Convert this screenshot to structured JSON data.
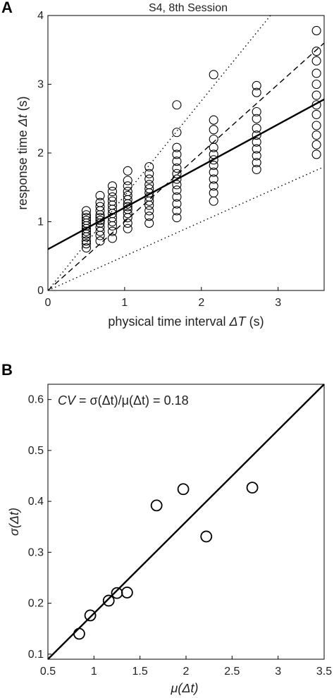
{
  "chart_data": [
    {
      "type": "scatter",
      "panel_label": "A",
      "title": "S4, 8th Session",
      "xlabel_pre": "physical time interval ",
      "xlabel_var": "ΔT",
      "xlabel_post": " (s)",
      "ylabel_pre": "response time ",
      "ylabel_var": "Δt",
      "ylabel_post": " (s)",
      "xlim": [
        0,
        3.6
      ],
      "ylim": [
        0,
        4
      ],
      "xticks": [
        "0",
        "1",
        "2",
        "3"
      ],
      "yticks": [
        "0",
        "1",
        "2",
        "3",
        "4"
      ],
      "grid": false,
      "series": [
        {
          "kind": "points",
          "marker": "open-circle",
          "groups": [
            {
              "x": 0.5,
              "y": [
                0.62,
                0.68,
                0.72,
                0.78,
                0.82,
                0.86,
                0.9,
                0.94,
                0.98,
                1.02,
                1.06,
                1.1,
                1.16
              ]
            },
            {
              "x": 0.68,
              "y": [
                0.72,
                0.8,
                0.86,
                0.92,
                0.98,
                1.02,
                1.06,
                1.1,
                1.16,
                1.22,
                1.28,
                1.38
              ]
            },
            {
              "x": 0.84,
              "y": [
                0.76,
                0.86,
                0.94,
                1.0,
                1.06,
                1.12,
                1.18,
                1.24,
                1.3,
                1.36,
                1.44,
                1.52
              ]
            },
            {
              "x": 1.04,
              "y": [
                0.9,
                0.98,
                1.06,
                1.12,
                1.18,
                1.22,
                1.26,
                1.32,
                1.38,
                1.44,
                1.52,
                1.6,
                1.74
              ]
            },
            {
              "x": 1.32,
              "y": [
                0.98,
                1.08,
                1.16,
                1.24,
                1.3,
                1.36,
                1.42,
                1.48,
                1.54,
                1.62,
                1.7,
                1.8
              ]
            },
            {
              "x": 1.68,
              "y": [
                1.06,
                1.16,
                1.26,
                1.36,
                1.46,
                1.54,
                1.62,
                1.7,
                1.78,
                1.88,
                1.98,
                2.08,
                2.3,
                2.7
              ]
            },
            {
              "x": 2.16,
              "y": [
                1.3,
                1.42,
                1.52,
                1.62,
                1.72,
                1.82,
                1.9,
                1.98,
                2.08,
                2.2,
                2.34,
                2.48,
                3.14
              ]
            },
            {
              "x": 2.72,
              "y": [
                1.76,
                1.86,
                1.96,
                2.06,
                2.16,
                2.26,
                2.36,
                2.5,
                2.6,
                2.88,
                2.98
              ]
            },
            {
              "x": 3.5,
              "y": [
                1.98,
                2.12,
                2.26,
                2.4,
                2.56,
                2.7,
                2.84,
                3.0,
                3.16,
                3.34,
                3.48,
                3.78
              ]
            }
          ]
        },
        {
          "kind": "line",
          "style": "solid",
          "points": [
            [
              0,
              0.6
            ],
            [
              3.6,
              2.78
            ]
          ]
        },
        {
          "kind": "line",
          "style": "dashed",
          "points": [
            [
              0,
              0
            ],
            [
              3.6,
              3.6
            ]
          ]
        },
        {
          "kind": "line",
          "style": "dotted",
          "points": [
            [
              0,
              0
            ],
            [
              2.9,
              4
            ]
          ]
        },
        {
          "kind": "line",
          "style": "dotted",
          "points": [
            [
              0,
              0
            ],
            [
              3.6,
              1.8
            ]
          ]
        }
      ]
    },
    {
      "type": "scatter",
      "panel_label": "B",
      "annotation_pre": "CV",
      "annotation_mid": " = σ(Δt)/μ(Δt) = ",
      "annotation_val": "0.18",
      "xlabel": "μ(Δt)",
      "ylabel": "σ(Δt)",
      "xlim": [
        0.5,
        3.5
      ],
      "ylim": [
        0.09,
        0.63
      ],
      "xticks": [
        "0.5",
        "1",
        "1.5",
        "2",
        "2.5",
        "3",
        "3.5"
      ],
      "yticks": [
        "0.1",
        "0.2",
        "0.3",
        "0.4",
        "0.5",
        "0.6"
      ],
      "grid": false,
      "points": [
        {
          "x": 0.84,
          "y": 0.14
        },
        {
          "x": 0.96,
          "y": 0.176
        },
        {
          "x": 1.16,
          "y": 0.205
        },
        {
          "x": 1.25,
          "y": 0.22
        },
        {
          "x": 1.36,
          "y": 0.221
        },
        {
          "x": 1.68,
          "y": 0.392
        },
        {
          "x": 1.97,
          "y": 0.424
        },
        {
          "x": 2.22,
          "y": 0.331
        },
        {
          "x": 2.72,
          "y": 0.427
        }
      ],
      "fit_line": [
        [
          0.5,
          0.09
        ],
        [
          3.5,
          0.63
        ]
      ]
    }
  ]
}
